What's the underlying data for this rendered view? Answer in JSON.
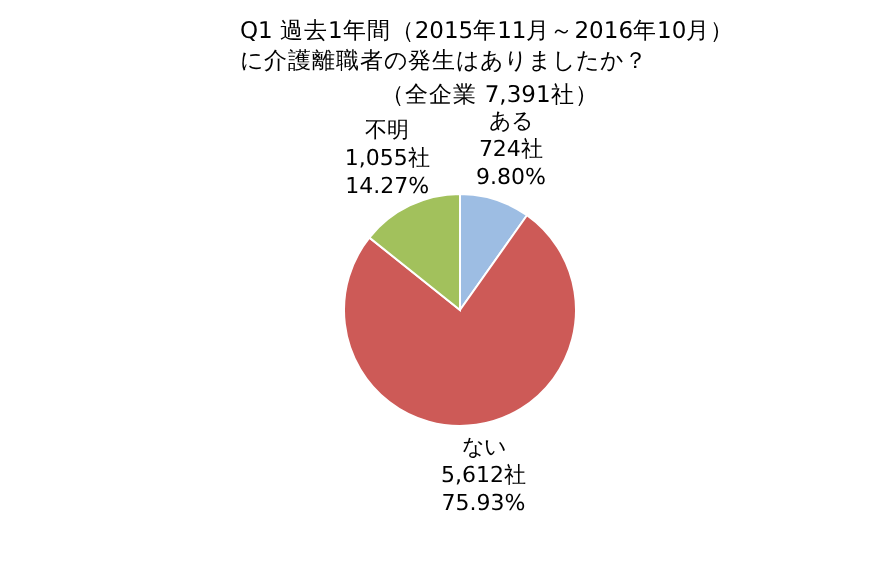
{
  "chart_data": {
    "type": "pie",
    "title": "Q1 過去1年間（2015年11月～2016年10月）に介護離職者の発生はありましたか？",
    "subtitle": "（全企業 7,391社）",
    "categories": [
      "ある",
      "ない",
      "不明"
    ],
    "values": [
      724,
      5612,
      1055
    ],
    "value_labels": [
      "724社\n9.80%",
      "5,612社\n75.93%",
      "1,055社\n14.27%"
    ],
    "colors": [
      "#9dbde3",
      "#cd5a57",
      "#a2c15c"
    ]
  }
}
